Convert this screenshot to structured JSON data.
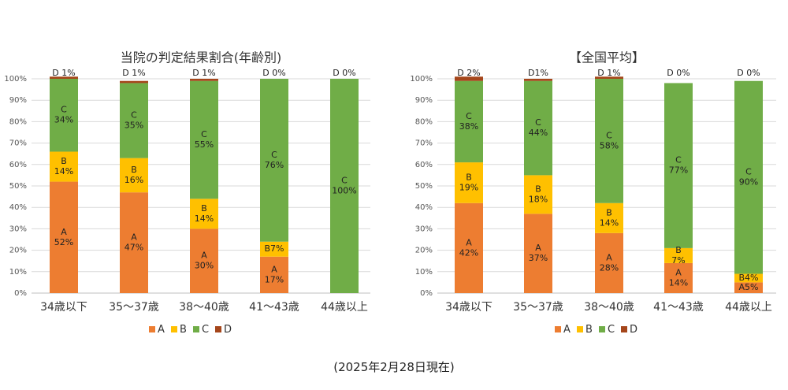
{
  "colors": {
    "A": "#ED7D31",
    "B": "#FFC000",
    "C": "#70AD47",
    "D": "#A5461B"
  },
  "footnote": "(2025年2月28日現在)",
  "chart_data": [
    {
      "type": "bar",
      "stacked": true,
      "title": "当院の判定結果割合(年齢別)",
      "categories": [
        "34歳以下",
        "35～37歳",
        "38～40歳",
        "41～43歳",
        "44歳以上"
      ],
      "ylim": [
        0,
        100
      ],
      "yticks": [
        "0%",
        "10%",
        "20%",
        "30%",
        "40%",
        "50%",
        "60%",
        "70%",
        "80%",
        "90%",
        "100%"
      ],
      "grid": true,
      "legend": "bottom",
      "series": [
        {
          "name": "A",
          "values": [
            52,
            47,
            30,
            17,
            0
          ],
          "labels": [
            "A\n52%",
            "A\n47%",
            "A\n30%",
            "A\n17%",
            ""
          ]
        },
        {
          "name": "B",
          "values": [
            14,
            16,
            14,
            7,
            0
          ],
          "labels": [
            "B\n14%",
            "B\n16%",
            "B\n14%",
            "B7%",
            ""
          ]
        },
        {
          "name": "C",
          "values": [
            34,
            35,
            55,
            76,
            100
          ],
          "labels": [
            "C\n34%",
            "C\n35%",
            "C\n55%",
            "C\n76%",
            "C\n100%"
          ]
        },
        {
          "name": "D",
          "values": [
            1,
            1,
            1,
            0,
            0
          ],
          "labels": [
            "D 1%",
            "D 1%",
            "D 1%",
            "D 0%",
            "D 0%"
          ]
        }
      ]
    },
    {
      "type": "bar",
      "stacked": true,
      "title": "【全国平均】",
      "categories": [
        "34歳以下",
        "35～37歳",
        "38～40歳",
        "41～43歳",
        "44歳以上"
      ],
      "ylim": [
        0,
        100
      ],
      "yticks": [
        "0%",
        "10%",
        "20%",
        "30%",
        "40%",
        "50%",
        "60%",
        "70%",
        "80%",
        "90%",
        "100%"
      ],
      "grid": true,
      "legend": "bottom",
      "series": [
        {
          "name": "A",
          "values": [
            42,
            37,
            28,
            14,
            5
          ],
          "labels": [
            "A\n42%",
            "A\n37%",
            "A\n28%",
            "A\n14%",
            "A5%"
          ]
        },
        {
          "name": "B",
          "values": [
            19,
            18,
            14,
            7,
            4
          ],
          "labels": [
            "B\n19%",
            "B\n18%",
            "B\n14%",
            "B\n7%",
            "B4%"
          ]
        },
        {
          "name": "C",
          "values": [
            38,
            44,
            58,
            77,
            90
          ],
          "labels": [
            "C\n38%",
            "C\n44%",
            "C\n58%",
            "C\n77%",
            "C\n90%"
          ]
        },
        {
          "name": "D",
          "values": [
            2,
            1,
            1,
            0,
            0
          ],
          "labels": [
            "D 2%",
            "D1%",
            "D 1%",
            "D 0%",
            "D 0%"
          ]
        }
      ]
    }
  ]
}
